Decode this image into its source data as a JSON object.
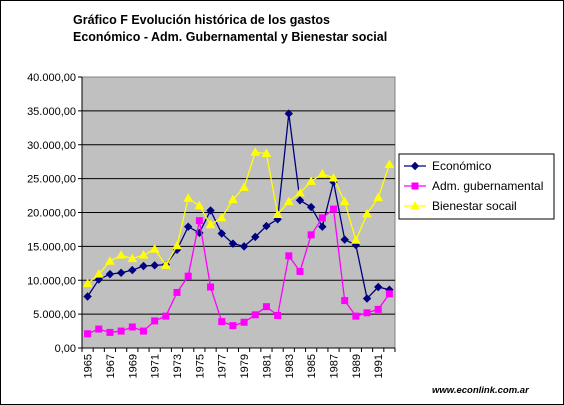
{
  "chart_data": {
    "type": "line",
    "title": "Gráfico F Evolución histórica de los gastos",
    "subtitle": "Económico - Adm. Gubernamental y Bienestar social",
    "x": [
      1965,
      1966,
      1967,
      1968,
      1969,
      1970,
      1971,
      1972,
      1973,
      1974,
      1975,
      1976,
      1977,
      1978,
      1979,
      1980,
      1981,
      1982,
      1983,
      1984,
      1985,
      1986,
      1987,
      1988,
      1989,
      1990,
      1991,
      1992
    ],
    "x_tick_labels": [
      "1965",
      "1967",
      "1969",
      "1971",
      "1973",
      "1975",
      "1977",
      "1979",
      "1981",
      "1983",
      "1985",
      "1987",
      "1989",
      "1991"
    ],
    "y_tick_labels": [
      "0,00",
      "5.000,00",
      "10.000,00",
      "15.000,00",
      "20.000,00",
      "25.000,00",
      "30.000,00",
      "35.000,00",
      "40.000,00"
    ],
    "ylim": [
      0,
      40000
    ],
    "grid": "horizontal",
    "legend_position": "right",
    "plot_background": "#c0c0c0",
    "series": [
      {
        "name": "Económico",
        "color": "#000080",
        "marker": "diamond",
        "values": [
          7600,
          10100,
          10900,
          11100,
          11500,
          12100,
          12200,
          12300,
          14500,
          17900,
          17000,
          20300,
          16900,
          15400,
          15000,
          16400,
          18000,
          19000,
          34600,
          21800,
          20800,
          17900,
          24500,
          16000,
          15200,
          7300,
          9000,
          8600
        ]
      },
      {
        "name": "Adm. gubernamental",
        "color": "#ff00ff",
        "marker": "square",
        "values": [
          2100,
          2800,
          2300,
          2500,
          3100,
          2500,
          4000,
          4700,
          8200,
          10600,
          18800,
          9000,
          3900,
          3300,
          3800,
          4900,
          6100,
          4800,
          13600,
          11300,
          16700,
          19200,
          20500,
          7000,
          4700,
          5200,
          5700,
          8000
        ]
      },
      {
        "name": "Bienestar socail",
        "color": "#ffff00",
        "marker": "triangle",
        "values": [
          9500,
          10900,
          12800,
          13700,
          13200,
          13700,
          14600,
          12200,
          15100,
          22100,
          21000,
          18200,
          19200,
          21900,
          23700,
          28900,
          28700,
          19700,
          21600,
          22900,
          24600,
          25700,
          25100,
          21600,
          15900,
          19800,
          22200,
          27100
        ]
      }
    ]
  },
  "source_text": "www.econlink.com.ar"
}
